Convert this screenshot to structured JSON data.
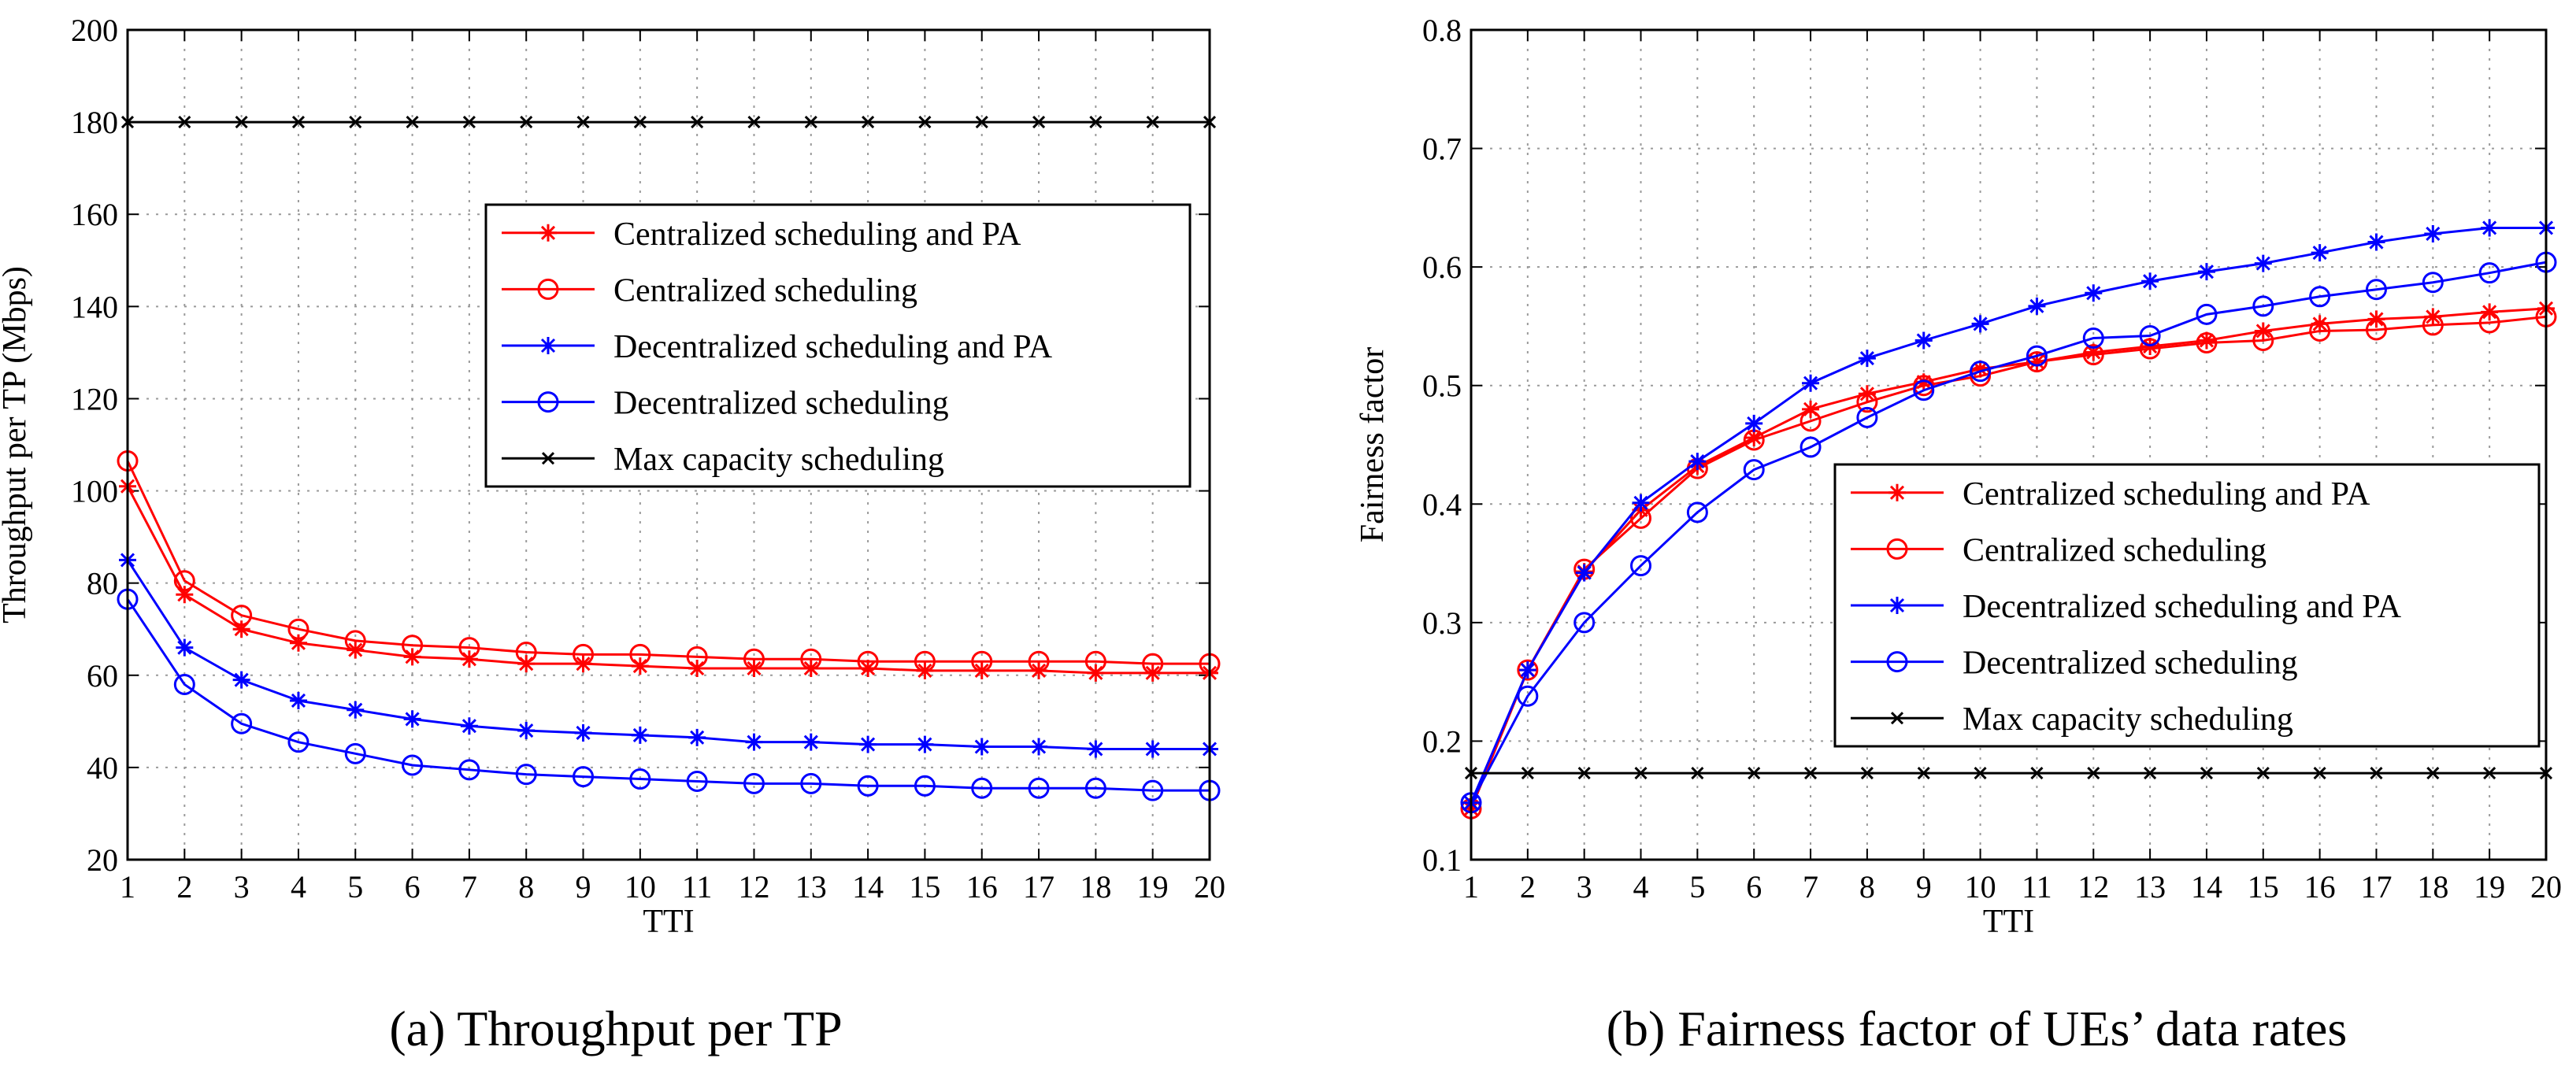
{
  "chart_data": [
    {
      "type": "line",
      "caption": "(a)  Throughput per TP",
      "xlabel": "TTI",
      "ylabel": "Throughput per TP (Mbps)",
      "x": [
        1,
        2,
        3,
        4,
        5,
        6,
        7,
        8,
        9,
        10,
        11,
        12,
        13,
        14,
        15,
        16,
        17,
        18,
        19,
        20
      ],
      "xlim": [
        1,
        20
      ],
      "ylim": [
        20,
        200
      ],
      "xticks": [
        1,
        2,
        3,
        4,
        5,
        6,
        7,
        8,
        9,
        10,
        11,
        12,
        13,
        14,
        15,
        16,
        17,
        18,
        19,
        20
      ],
      "yticks": [
        20,
        40,
        60,
        80,
        100,
        120,
        140,
        160,
        180,
        200
      ],
      "grid": true,
      "legend_position": "upper-right",
      "series": [
        {
          "name": "Centralized scheduling and PA",
          "color": "#ff0000",
          "marker": "star",
          "values": [
            101,
            77.5,
            70,
            67,
            65.5,
            64,
            63.5,
            62.5,
            62.5,
            62,
            61.5,
            61.5,
            61.5,
            61.5,
            61,
            61,
            61,
            60.5,
            60.5,
            60.5
          ]
        },
        {
          "name": "Centralized scheduling",
          "color": "#ff0000",
          "marker": "circle",
          "values": [
            106.5,
            80.5,
            73,
            70,
            67.5,
            66.5,
            66,
            65,
            64.5,
            64.5,
            64,
            63.5,
            63.5,
            63,
            63,
            63,
            63,
            63,
            62.5,
            62.5
          ]
        },
        {
          "name": "Decentralized scheduling and PA",
          "color": "#0000ff",
          "marker": "star",
          "values": [
            85,
            66,
            59,
            54.5,
            52.5,
            50.5,
            49,
            48,
            47.5,
            47,
            46.5,
            45.5,
            45.5,
            45,
            45,
            44.5,
            44.5,
            44,
            44,
            44
          ]
        },
        {
          "name": "Decentralized scheduling",
          "color": "#0000ff",
          "marker": "circle",
          "values": [
            76.5,
            58,
            49.5,
            45.5,
            43,
            40.5,
            39.5,
            38.5,
            38,
            37.5,
            37,
            36.5,
            36.5,
            36,
            36,
            35.5,
            35.5,
            35.5,
            35,
            35
          ]
        },
        {
          "name": "Max capacity scheduling",
          "color": "#000000",
          "marker": "x",
          "values": [
            180,
            180,
            180,
            180,
            180,
            180,
            180,
            180,
            180,
            180,
            180,
            180,
            180,
            180,
            180,
            180,
            180,
            180,
            180,
            180
          ]
        }
      ]
    },
    {
      "type": "line",
      "caption": "(b)  Fairness factor of UEs’ data rates",
      "xlabel": "TTI",
      "ylabel": "Fairness factor",
      "x": [
        1,
        2,
        3,
        4,
        5,
        6,
        7,
        8,
        9,
        10,
        11,
        12,
        13,
        14,
        15,
        16,
        17,
        18,
        19,
        20
      ],
      "xlim": [
        1,
        20
      ],
      "ylim": [
        0.1,
        0.8
      ],
      "xticks": [
        1,
        2,
        3,
        4,
        5,
        6,
        7,
        8,
        9,
        10,
        11,
        12,
        13,
        14,
        15,
        16,
        17,
        18,
        19,
        20
      ],
      "yticks": [
        0.1,
        0.2,
        0.3,
        0.4,
        0.5,
        0.6,
        0.7,
        0.8
      ],
      "grid": true,
      "legend_position": "lower-right",
      "series": [
        {
          "name": "Centralized scheduling and PA",
          "color": "#ff0000",
          "marker": "star",
          "values": [
            0.143,
            0.26,
            0.343,
            0.395,
            0.432,
            0.456,
            0.48,
            0.493,
            0.503,
            0.514,
            0.52,
            0.528,
            0.533,
            0.538,
            0.546,
            0.552,
            0.556,
            0.558,
            0.562,
            0.565
          ]
        },
        {
          "name": "Centralized scheduling",
          "color": "#ff0000",
          "marker": "circle",
          "values": [
            0.143,
            0.26,
            0.345,
            0.388,
            0.43,
            0.454,
            0.47,
            0.486,
            0.5,
            0.508,
            0.52,
            0.526,
            0.531,
            0.536,
            0.538,
            0.546,
            0.547,
            0.551,
            0.553,
            0.558
          ]
        },
        {
          "name": "Decentralized scheduling and PA",
          "color": "#0000ff",
          "marker": "star",
          "values": [
            0.148,
            0.26,
            0.342,
            0.401,
            0.436,
            0.468,
            0.502,
            0.523,
            0.538,
            0.552,
            0.567,
            0.578,
            0.588,
            0.596,
            0.603,
            0.612,
            0.621,
            0.628,
            0.633,
            0.633
          ]
        },
        {
          "name": "Decentralized scheduling",
          "color": "#0000ff",
          "marker": "circle",
          "values": [
            0.148,
            0.238,
            0.3,
            0.348,
            0.393,
            0.429,
            0.448,
            0.473,
            0.496,
            0.512,
            0.525,
            0.54,
            0.542,
            0.56,
            0.567,
            0.575,
            0.581,
            0.587,
            0.595,
            0.604
          ]
        },
        {
          "name": "Max capacity scheduling",
          "color": "#000000",
          "marker": "x",
          "values": [
            0.173,
            0.173,
            0.173,
            0.173,
            0.173,
            0.173,
            0.173,
            0.173,
            0.173,
            0.173,
            0.173,
            0.173,
            0.173,
            0.173,
            0.173,
            0.173,
            0.173,
            0.173,
            0.173,
            0.173
          ]
        }
      ]
    }
  ]
}
